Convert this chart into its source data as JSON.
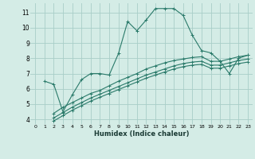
{
  "xlabel": "Humidex (Indice chaleur)",
  "bg_color": "#d4ece6",
  "grid_color": "#a8cec8",
  "line_color": "#2a7a6a",
  "xlim": [
    -0.5,
    23.5
  ],
  "ylim": [
    3.7,
    11.6
  ],
  "x_ticks": [
    0,
    1,
    2,
    3,
    4,
    5,
    6,
    7,
    8,
    9,
    10,
    11,
    12,
    13,
    14,
    15,
    16,
    17,
    18,
    19,
    20,
    21,
    22,
    23
  ],
  "y_ticks": [
    4,
    5,
    6,
    7,
    8,
    9,
    10,
    11
  ],
  "series": [
    {
      "x": [
        1,
        2,
        3,
        4,
        5,
        6,
        7,
        8,
        9,
        10,
        11,
        12,
        13,
        14,
        15,
        16,
        17,
        18,
        19,
        20,
        21,
        22,
        23
      ],
      "y": [
        6.5,
        6.3,
        4.5,
        5.6,
        6.6,
        7.0,
        7.0,
        6.9,
        8.3,
        10.4,
        9.8,
        10.5,
        11.25,
        11.25,
        11.25,
        10.8,
        9.5,
        8.5,
        8.35,
        7.8,
        7.0,
        8.0,
        8.2
      ]
    },
    {
      "x": [
        2,
        3,
        4,
        5,
        6,
        7,
        8,
        9,
        10,
        11,
        12,
        13,
        14,
        15,
        16,
        17,
        18,
        19,
        20,
        21,
        22,
        23
      ],
      "y": [
        4.4,
        4.8,
        5.1,
        5.4,
        5.7,
        5.9,
        6.2,
        6.5,
        6.75,
        7.0,
        7.3,
        7.5,
        7.7,
        7.85,
        7.95,
        8.05,
        8.1,
        7.8,
        7.8,
        7.95,
        8.1,
        8.2
      ]
    },
    {
      "x": [
        2,
        3,
        4,
        5,
        6,
        7,
        8,
        9,
        10,
        11,
        12,
        13,
        14,
        15,
        16,
        17,
        18,
        19,
        20,
        21,
        22,
        23
      ],
      "y": [
        4.1,
        4.45,
        4.8,
        5.1,
        5.4,
        5.65,
        5.9,
        6.15,
        6.4,
        6.65,
        6.9,
        7.1,
        7.3,
        7.5,
        7.65,
        7.75,
        7.8,
        7.55,
        7.55,
        7.7,
        7.85,
        7.95
      ]
    },
    {
      "x": [
        2,
        3,
        4,
        5,
        6,
        7,
        8,
        9,
        10,
        11,
        12,
        13,
        14,
        15,
        16,
        17,
        18,
        19,
        20,
        21,
        22,
        23
      ],
      "y": [
        3.9,
        4.25,
        4.6,
        4.9,
        5.2,
        5.45,
        5.7,
        5.95,
        6.2,
        6.45,
        6.7,
        6.9,
        7.1,
        7.3,
        7.45,
        7.55,
        7.6,
        7.35,
        7.35,
        7.5,
        7.65,
        7.75
      ]
    }
  ]
}
